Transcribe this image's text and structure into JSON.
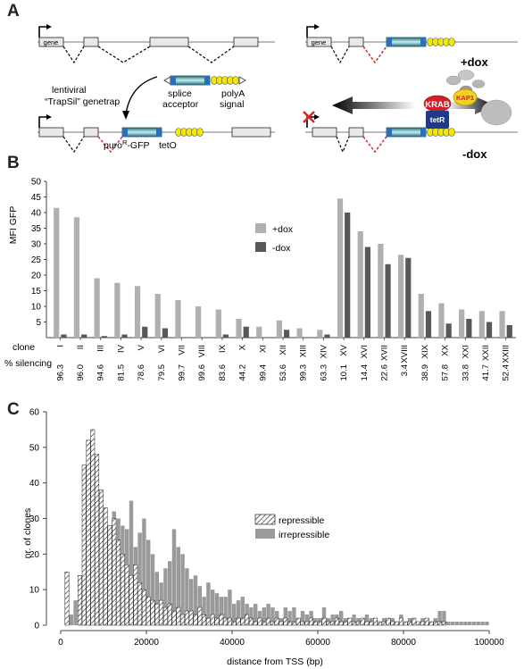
{
  "panel_a": {
    "letter": "A",
    "gene_label": "gene",
    "gene_label_right": "gene",
    "lentiviral_label_1": "lentiviral",
    "lentiviral_label_2": "“TrapSil” genetrap",
    "splice_label_1": "splice",
    "splice_label_2": "acceptor",
    "polya_label_1": "polyA",
    "polya_label_2": "signal",
    "puro_label": "puro",
    "puro_sup": "R",
    "puro_gfp": "-GFP",
    "teto_label": "tetO",
    "plus_dox": "+dox",
    "minus_dox": "-dox",
    "krab": "KRAB",
    "kap1": "KAP1",
    "tetr": "tetR",
    "colors": {
      "gfp": "#3f9fb0",
      "teto": "#f2e800",
      "krab": "#d41e2a",
      "kap1": "#f3d022",
      "tetr": "#1f3a8a",
      "intron": "#d22a2a"
    }
  },
  "panel_b": {
    "letter": "B",
    "clone_label": "clone",
    "silencing_label": "% silencing",
    "colors": {
      "plus": "#b0b0b0",
      "minus": "#585858"
    }
  },
  "panel_c": {
    "letter": "C",
    "legend_repressible": "repressible",
    "legend_irrepressible": "irrepressible",
    "colors": {
      "irrepressible": "#9a9a9a"
    }
  },
  "chart_data": [
    {
      "type": "bar",
      "panel": "B",
      "ylabel": "MFI GFP",
      "ylim": [
        0,
        50
      ],
      "yticks": [
        5,
        10,
        15,
        20,
        25,
        30,
        35,
        40,
        45,
        50
      ],
      "legend": "center-right",
      "categories": [
        "I",
        "II",
        "III",
        "IV",
        "V",
        "VI",
        "VII",
        "VIII",
        "IX",
        "X",
        "XI",
        "XII",
        "XIII",
        "XIV",
        "XV",
        "XVI",
        "XVII",
        "XVIII",
        "XIX",
        "XX",
        "XXI",
        "XXII",
        "XXIII"
      ],
      "silencing": [
        "96.3",
        "96.0",
        "94.6",
        "81.5",
        "78.6",
        "79.5",
        "99.7",
        "99.6",
        "83.6",
        "44.2",
        "99.4",
        "53.6",
        "99.3",
        "63.3",
        "10.1",
        "14.4",
        "22.6",
        "3.4",
        "38.9",
        "57.8",
        "33.8",
        "41.7",
        "52.4"
      ],
      "series": [
        {
          "name": "+dox",
          "values": [
            41.5,
            38.5,
            19,
            17.5,
            16.5,
            14,
            12,
            10,
            9,
            6,
            3.5,
            5.5,
            3,
            2.5,
            44.5,
            34,
            30,
            26.5,
            14,
            11,
            9,
            8.5,
            8.5
          ]
        },
        {
          "name": "-dox",
          "values": [
            1,
            1,
            0.5,
            1,
            3.5,
            3,
            0,
            0,
            1,
            3.5,
            0,
            2.5,
            0,
            1,
            40,
            29,
            23.5,
            25.5,
            8.5,
            4.5,
            6,
            5,
            4
          ]
        }
      ]
    },
    {
      "type": "bar",
      "panel": "C",
      "xlabel": "distance from TSS (bp)",
      "ylabel": "nr. of clones",
      "xlim": [
        0,
        100000
      ],
      "ylim": [
        0,
        60
      ],
      "xticks": [
        0,
        20000,
        40000,
        60000,
        80000,
        100000
      ],
      "yticks": [
        0,
        10,
        20,
        30,
        40,
        50,
        60
      ],
      "legend": "center-right",
      "bin_width": 1000,
      "series": [
        {
          "name": "repressible",
          "bins": [
            1,
            4,
            5,
            6,
            7,
            8,
            9,
            10,
            11,
            12,
            13,
            14,
            15,
            16,
            17,
            18,
            19,
            20,
            21,
            22,
            23,
            24,
            25,
            26,
            27,
            28,
            29,
            30,
            31,
            32,
            33,
            34,
            35,
            36,
            37,
            38,
            39,
            40,
            41,
            42,
            43,
            44,
            45,
            46,
            47,
            48,
            49,
            50,
            51,
            52,
            53,
            54,
            55,
            56,
            57,
            58,
            59,
            60,
            61,
            62,
            63,
            64,
            65,
            66,
            67,
            68,
            69,
            70,
            71,
            72,
            73,
            74,
            75,
            76,
            77,
            78,
            79,
            80,
            81,
            82,
            83,
            84,
            85,
            86,
            87,
            88,
            89
          ],
          "values": [
            15,
            14,
            45,
            52,
            55,
            48,
            38,
            33,
            28,
            30,
            24,
            20,
            17,
            14,
            17,
            12,
            10,
            8,
            7,
            6,
            7,
            5,
            6,
            4,
            5,
            3,
            4,
            4,
            3,
            5,
            3,
            2,
            3,
            2,
            3,
            2,
            2,
            1,
            2,
            2,
            3,
            2,
            1,
            2,
            1,
            2,
            1,
            2,
            1,
            2,
            1,
            1,
            2,
            1,
            1,
            2,
            1,
            1,
            2,
            1,
            1,
            2,
            1,
            1,
            2,
            1,
            1,
            2,
            1,
            1,
            2,
            1,
            1,
            2,
            1,
            1,
            2,
            1,
            1,
            2,
            1,
            1,
            2,
            1,
            1,
            1,
            1
          ]
        },
        {
          "name": "irrepressible",
          "bins": [
            1,
            2,
            3,
            4,
            5,
            6,
            7,
            8,
            9,
            10,
            11,
            12,
            13,
            14,
            15,
            16,
            17,
            18,
            19,
            20,
            21,
            22,
            23,
            24,
            25,
            26,
            27,
            28,
            29,
            30,
            31,
            32,
            33,
            34,
            35,
            36,
            37,
            38,
            39,
            40,
            41,
            42,
            43,
            44,
            45,
            46,
            47,
            48,
            49,
            50,
            51,
            52,
            53,
            54,
            55,
            56,
            57,
            58,
            59,
            60,
            61,
            62,
            63,
            64,
            65,
            66,
            67,
            68,
            69,
            70,
            71,
            72,
            73,
            74,
            75,
            76,
            77,
            78,
            79,
            80,
            81,
            82,
            83,
            84,
            85,
            86,
            87,
            88,
            89,
            90,
            91,
            92,
            93,
            94,
            95,
            96,
            97,
            98,
            99
          ],
          "values": [
            2,
            3,
            7,
            14,
            15,
            15,
            18,
            14,
            18,
            23,
            24,
            32,
            30,
            28,
            27,
            35,
            22,
            26,
            30,
            24,
            20,
            15,
            12,
            16,
            18,
            27,
            22,
            20,
            16,
            13,
            14,
            11,
            8,
            12,
            10,
            9,
            8,
            8,
            10,
            6,
            7,
            8,
            6,
            5,
            6,
            4,
            5,
            6,
            5,
            4,
            2,
            5,
            4,
            5,
            2,
            4,
            3,
            4,
            2,
            2,
            5,
            2,
            3,
            3,
            4,
            2,
            2,
            3,
            2,
            1,
            3,
            2,
            2,
            1,
            2,
            1,
            2,
            1,
            3,
            1,
            2,
            2,
            1,
            2,
            1,
            1,
            2,
            4,
            4,
            1,
            1,
            1,
            1,
            1,
            1,
            1,
            1,
            1,
            1
          ]
        }
      ]
    }
  ]
}
